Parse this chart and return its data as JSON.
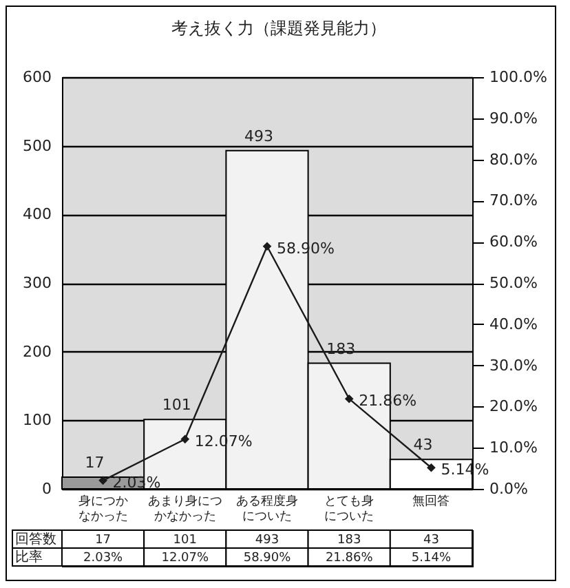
{
  "chart_data": {
    "type": "bar",
    "title": "考え抜く力（課題発見能力）",
    "categories": [
      "身につかなかった",
      "あまり身につかなかった",
      "ある程度身についた",
      "とても身についた",
      "無回答"
    ],
    "series": [
      {
        "name": "回答数",
        "colors": [
          "#9a9a9a",
          "#f2f2f2",
          "#f2f2f2",
          "#f2f2f2",
          "#ffffff"
        ],
        "values": [
          17,
          101,
          493,
          183,
          43
        ],
        "value_labels": [
          "17",
          "101",
          "493",
          "183",
          "43"
        ]
      },
      {
        "name": "比率",
        "type": "line",
        "axis": "y2",
        "color": "#1a1a1a",
        "values": [
          2.03,
          12.07,
          58.9,
          21.86,
          5.14
        ],
        "value_labels": [
          "2.03%",
          "12.07%",
          "58.90%",
          "21.86%",
          "5.14%"
        ]
      }
    ],
    "ylim": [
      0,
      600
    ],
    "yticks": [
      0,
      100,
      200,
      300,
      400,
      500,
      600
    ],
    "y2lim": [
      0,
      100
    ],
    "y2ticks": [
      {
        "value": 0,
        "label": "0.0%"
      },
      {
        "value": 10,
        "label": "10.0%"
      },
      {
        "value": 20,
        "label": "20.0%"
      },
      {
        "value": 30,
        "label": "30.0%"
      },
      {
        "value": 40,
        "label": "40.0%"
      },
      {
        "value": 50,
        "label": "50.0%"
      },
      {
        "value": 60,
        "label": "60.0%"
      },
      {
        "value": 70,
        "label": "70.0%"
      },
      {
        "value": 80,
        "label": "80.0%"
      },
      {
        "value": 90,
        "label": "90.0%"
      },
      {
        "value": 100,
        "label": "100.0%"
      }
    ],
    "grid": "y",
    "marker": "diamond",
    "line_style": "solid"
  }
}
